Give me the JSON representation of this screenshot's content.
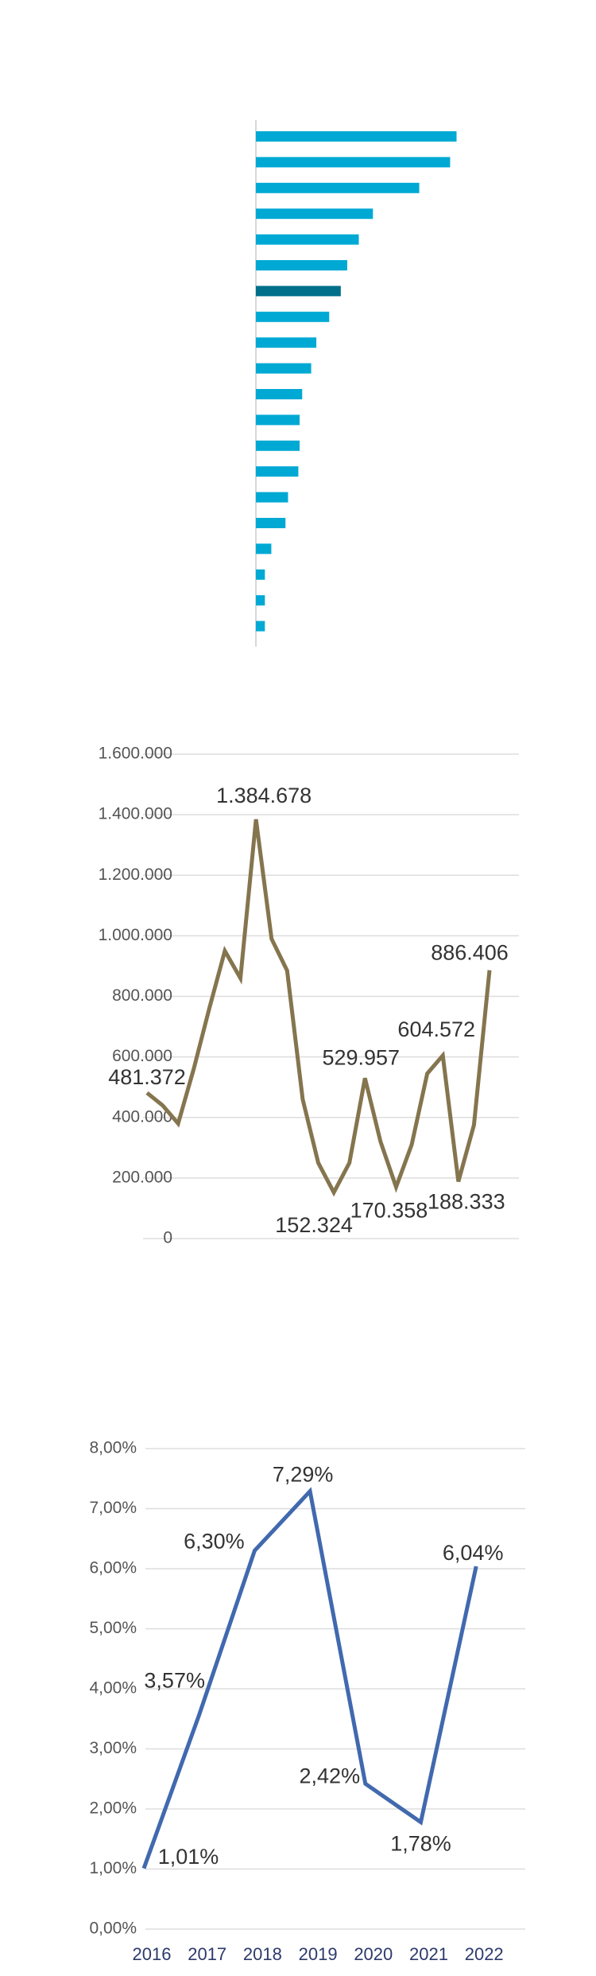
{
  "chart_data": [
    {
      "type": "bar",
      "orientation": "horizontal",
      "categories": [
        null,
        null,
        null,
        null,
        null,
        null,
        null,
        null,
        null,
        null,
        null,
        null,
        null,
        null,
        null,
        null,
        null,
        null,
        null,
        null
      ],
      "values": [
        156,
        151,
        127,
        91,
        80,
        71,
        66,
        57,
        47,
        43,
        36,
        34,
        34,
        33,
        25,
        23,
        12,
        7,
        7,
        7
      ],
      "colors": [
        "#00a9d4",
        "#00a9d4",
        "#00a9d4",
        "#00a9d4",
        "#00a9d4",
        "#00a9d4",
        "#006f8a",
        "#00a9d4",
        "#00a9d4",
        "#00a9d4",
        "#00a9d4",
        "#00a9d4",
        "#00a9d4",
        "#00a9d4",
        "#00a9d4",
        "#00a9d4",
        "#00a9d4",
        "#00a9d4",
        "#00a9d4",
        "#00a9d4"
      ],
      "xlim": [
        0,
        160
      ]
    },
    {
      "type": "line",
      "categories": [
        null,
        null,
        null,
        null,
        null,
        null,
        null,
        null,
        null,
        null,
        null,
        null,
        null,
        null,
        null,
        null,
        null,
        null,
        null,
        null,
        null,
        null,
        null
      ],
      "values": [
        481372,
        440000,
        380000,
        560000,
        760000,
        950000,
        860000,
        1384678,
        990000,
        885000,
        460000,
        250000,
        152324,
        250000,
        529957,
        320000,
        170358,
        310000,
        545000,
        604572,
        188333,
        375000,
        886406
      ],
      "value_labels": [
        "481.372",
        null,
        null,
        null,
        null,
        null,
        null,
        "1.384.678",
        null,
        null,
        null,
        null,
        "152.324",
        null,
        "529.957",
        null,
        "170.358",
        null,
        null,
        "604.572",
        "188.333",
        null,
        "886.406"
      ],
      "color": "#85754e",
      "grid": true,
      "ylim": [
        0,
        1600000
      ],
      "yticks": [
        0,
        {
          "value": 200000,
          "label": "200.000"
        },
        {
          "value": 400000,
          "label": "400.000"
        },
        {
          "value": 600000,
          "label": "600.000"
        },
        {
          "value": 800000,
          "label": "800.000"
        },
        {
          "value": 1000000,
          "label": "1.000.000"
        },
        {
          "value": 1200000,
          "label": "1.200.000"
        },
        {
          "value": 1400000,
          "label": "1.400.000"
        },
        {
          "value": 1600000,
          "label": "1.600.000"
        }
      ]
    },
    {
      "type": "line",
      "categories": [
        "2016",
        "2017",
        "2018",
        "2019",
        "2020",
        "2021",
        "2022"
      ],
      "values": [
        1.01,
        3.57,
        6.3,
        7.29,
        2.42,
        1.78,
        6.04
      ],
      "value_labels": [
        "1,01%",
        "3,57%",
        "6,30%",
        "7,29%",
        "2,42%",
        "1,78%",
        "6,04%"
      ],
      "color": "#4169ae",
      "grid": true,
      "ylim": [
        0,
        8
      ],
      "yticks": [
        {
          "value": 0,
          "label": "0,00%"
        },
        {
          "value": 1,
          "label": "1,00%"
        },
        {
          "value": 2,
          "label": "2,00%"
        },
        {
          "value": 3,
          "label": "3,00%"
        },
        {
          "value": 4,
          "label": "4,00%"
        },
        {
          "value": 5,
          "label": "5,00%"
        },
        {
          "value": 6,
          "label": "6,00%"
        },
        {
          "value": 7,
          "label": "7,00%"
        },
        {
          "value": 8,
          "label": "8,00%"
        }
      ]
    }
  ]
}
